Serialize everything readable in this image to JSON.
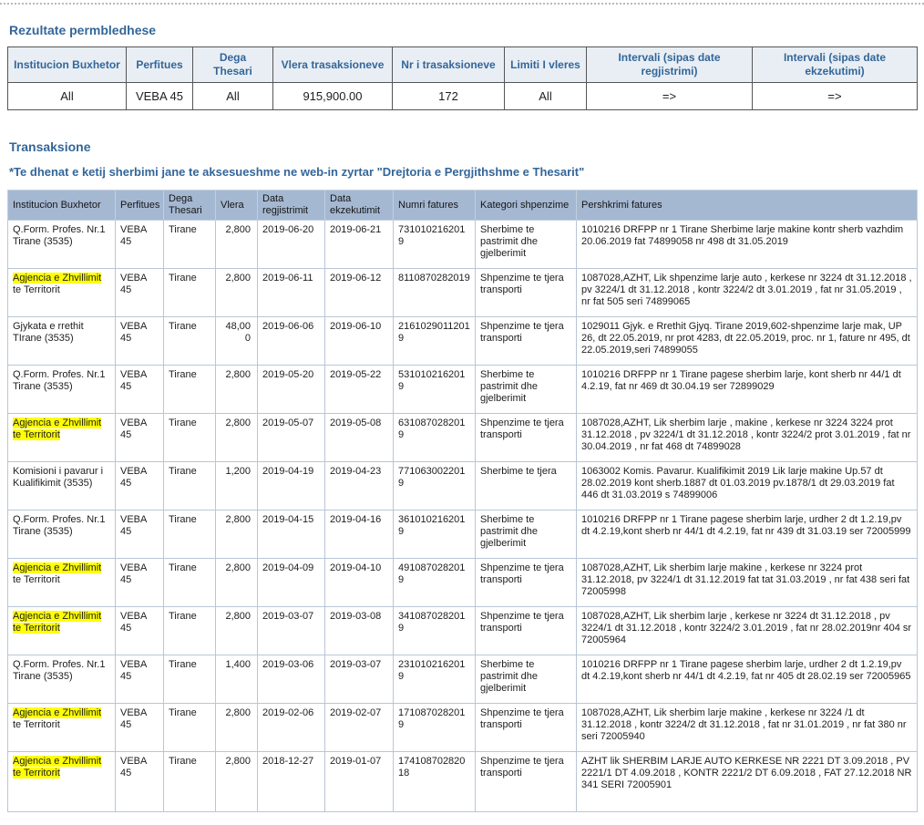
{
  "page": {
    "title_summary": "Rezultate permbledhese",
    "title_transactions": "Transaksione",
    "note": "*Te dhenat e ketij sherbimi jane te aksesueshme ne web-in zyrtar \"Drejtoria e Pergjithshme e Thesarit\""
  },
  "colors": {
    "accent": "#336699",
    "summary_header_bg": "#e8eef4",
    "transactions_header_bg": "#a5b8d2",
    "highlight": "#ffff00"
  },
  "summary": {
    "columns": [
      {
        "header": "Institucion Buxhetor",
        "value": "All"
      },
      {
        "header": "Perfitues",
        "value": "VEBA 45"
      },
      {
        "header": "Dega Thesari",
        "value": "All"
      },
      {
        "header": "Vlera trasaksioneve",
        "value": "915,900.00"
      },
      {
        "header": "Nr i trasaksioneve",
        "value": "172"
      },
      {
        "header": "Limiti I vleres",
        "value": "All"
      },
      {
        "header": "Intervali (sipas date regjistrimi)",
        "value": "=>"
      },
      {
        "header": "Intervali (sipas date ekzekutimi)",
        "value": "=>"
      }
    ]
  },
  "transactions": {
    "columns": [
      {
        "key": "institucion",
        "label": "Institucion Buxhetor"
      },
      {
        "key": "perfitues",
        "label": "Perfitues"
      },
      {
        "key": "dega",
        "label": "Dega Thesari"
      },
      {
        "key": "vlera",
        "label": "Vlera"
      },
      {
        "key": "data-regjistrimit",
        "label": "Data regjistrimit"
      },
      {
        "key": "data-ekzekutimit",
        "label": "Data ekzekutimit"
      },
      {
        "key": "numri-fatures",
        "label": "Numri fatures"
      },
      {
        "key": "kategori-shpenzime",
        "label": "Kategori shpenzime"
      },
      {
        "key": "pershkrimi-fatures",
        "label": "Pershkrimi fatures"
      }
    ],
    "rows": [
      {
        "institution_parts": [
          {
            "text": "Q.Form. Profes. Nr.1 Tirane (3535)",
            "hl": false
          }
        ],
        "perfitues": "VEBA 45",
        "dega": "Tirane",
        "vlera": "2,800",
        "data_regjistrimit": "2019-06-20",
        "data_ekzekutimit": "2019-06-21",
        "numri_fatures": "7310102162019",
        "kategori": "Sherbime te pastrimit dhe gjelberimit",
        "pershkrimi": "1010216 DRFPP nr 1 Tirane Sherbime larje makine kontr sherb vazhdim 20.06.2019 fat 74899058 nr 498 dt 31.05.2019"
      },
      {
        "institution_parts": [
          {
            "text": "Agjencia e Zhvillimit",
            "hl": true
          },
          {
            "text": " te Territorit",
            "hl": false
          }
        ],
        "perfitues": "VEBA 45",
        "dega": "Tirane",
        "vlera": "2,800",
        "data_regjistrimit": "2019-06-11",
        "data_ekzekutimit": "2019-06-12",
        "numri_fatures": "8110870282019",
        "kategori": "Shpenzime te tjera transporti",
        "pershkrimi": "1087028,AZHT, Lik shpenzime larje auto , kerkese nr 3224 dt 31.12.2018 , pv 3224/1 dt 31.12.2018 , kontr 3224/2 dt 3.01.2019 , fat nr 31.05.2019 , nr fat 505 seri 74899065"
      },
      {
        "institution_parts": [
          {
            "text": "Gjykata e rrethit TIrane (3535)",
            "hl": false
          }
        ],
        "perfitues": "VEBA 45",
        "dega": "Tirane",
        "vlera": "48,000",
        "data_regjistrimit": "2019-06-06",
        "data_ekzekutimit": "2019-06-10",
        "numri_fatures": "21610290112019",
        "kategori": "Shpenzime te tjera transporti",
        "pershkrimi": "1029011 Gjyk. e Rrethit Gjyq. Tirane 2019,602-shpenzime larje mak, UP 26, dt 22.05.2019, nr prot 4283, dt 22.05.2019, proc. nr 1, fature nr 495, dt 22.05.2019,seri 74899055"
      },
      {
        "institution_parts": [
          {
            "text": "Q.Form. Profes. Nr.1 Tirane (3535)",
            "hl": false
          }
        ],
        "perfitues": "VEBA 45",
        "dega": "Tirane",
        "vlera": "2,800",
        "data_regjistrimit": "2019-05-20",
        "data_ekzekutimit": "2019-05-22",
        "numri_fatures": "5310102162019",
        "kategori": "Sherbime te pastrimit dhe gjelberimit",
        "pershkrimi": "1010216 DRFPP nr 1 Tirane pagese sherbim larje, kont sherb nr 44/1 dt 4.2.19, fat nr 469 dt 30.04.19 ser 72899029"
      },
      {
        "institution_parts": [
          {
            "text": "Agjencia e Zhvillimit te Territorit",
            "hl": true
          }
        ],
        "perfitues": "VEBA 45",
        "dega": "Tirane",
        "vlera": "2,800",
        "data_regjistrimit": "2019-05-07",
        "data_ekzekutimit": "2019-05-08",
        "numri_fatures": "6310870282019",
        "kategori": "Shpenzime te tjera transporti",
        "pershkrimi": "1087028,AZHT, Lik sherbim larje , makine , kerkese nr 3224 3224 prot 31.12.2018 , pv 3224/1 dt 31.12.2018 , kontr 3224/2 prot 3.01.2019 , fat nr 30.04.2019 , nr fat 468 dt 74899028"
      },
      {
        "institution_parts": [
          {
            "text": "Komisioni i pavarur i Kualifikimit (3535)",
            "hl": false
          }
        ],
        "perfitues": "VEBA 45",
        "dega": "Tirane",
        "vlera": "1,200",
        "data_regjistrimit": "2019-04-19",
        "data_ekzekutimit": "2019-04-23",
        "numri_fatures": "7710630022019",
        "kategori": "Sherbime te tjera",
        "pershkrimi": "1063002 Komis. Pavarur. Kualifikimit 2019 Lik larje makine Up.57 dt 28.02.2019 kont sherb.1887 dt 01.03.2019 pv.1878/1 dt 29.03.2019 fat 446 dt 31.03.2019 s 74899006"
      },
      {
        "institution_parts": [
          {
            "text": "Q.Form. Profes. Nr.1 Tirane (3535)",
            "hl": false
          }
        ],
        "perfitues": "VEBA 45",
        "dega": "Tirane",
        "vlera": "2,800",
        "data_regjistrimit": "2019-04-15",
        "data_ekzekutimit": "2019-04-16",
        "numri_fatures": "3610102162019",
        "kategori": "Sherbime te pastrimit dhe gjelberimit",
        "pershkrimi": "1010216 DRFPP nr 1 Tirane pagese sherbim larje, urdher 2 dt 1.2.19,pv dt 4.2.19,kont sherb nr 44/1 dt 4.2.19, fat nr 439 dt 31.03.19 ser 72005999"
      },
      {
        "institution_parts": [
          {
            "text": "Agjencia e Zhvillimit",
            "hl": true
          },
          {
            "text": " te Territorit",
            "hl": false
          }
        ],
        "perfitues": "VEBA 45",
        "dega": "Tirane",
        "vlera": "2,800",
        "data_regjistrimit": "2019-04-09",
        "data_ekzekutimit": "2019-04-10",
        "numri_fatures": "4910870282019",
        "kategori": "Shpenzime te tjera transporti",
        "pershkrimi": "1087028,AZHT, Lik sherbim larje makine , kerkese nr 3224 prot 31.12.2018, pv 3224/1 dt 31.12.2019 fat tat 31.03.2019 , nr fat 438 seri fat 72005998"
      },
      {
        "institution_parts": [
          {
            "text": "Agjencia e Zhvillimit te Territorit",
            "hl": true
          }
        ],
        "perfitues": "VEBA 45",
        "dega": "Tirane",
        "vlera": "2,800",
        "data_regjistrimit": "2019-03-07",
        "data_ekzekutimit": "2019-03-08",
        "numri_fatures": "3410870282019",
        "kategori": "Shpenzime te tjera transporti",
        "pershkrimi": "1087028,AZHT, Lik sherbim larje , kerkese nr 3224 dt 31.12.2018 , pv 3224/1 dt 31.12.2018 , kontr 3224/2 3.01.2019 , fat nr 28.02.2019nr 404 sr 72005964"
      },
      {
        "institution_parts": [
          {
            "text": "Q.Form. Profes. Nr.1 Tirane (3535)",
            "hl": false
          }
        ],
        "perfitues": "VEBA 45",
        "dega": "Tirane",
        "vlera": "1,400",
        "data_regjistrimit": "2019-03-06",
        "data_ekzekutimit": "2019-03-07",
        "numri_fatures": "2310102162019",
        "kategori": "Sherbime te pastrimit dhe gjelberimit",
        "pershkrimi": "1010216 DRFPP nr 1 Tirane pagese sherbim larje, urdher 2 dt 1.2.19,pv dt 4.2.19,kont sherb nr 44/1 dt 4.2.19, fat nr 405 dt 28.02.19 ser 72005965"
      },
      {
        "institution_parts": [
          {
            "text": "Agjencia e Zhvillimit",
            "hl": true
          },
          {
            "text": " te Territorit",
            "hl": false
          }
        ],
        "perfitues": "VEBA 45",
        "dega": "Tirane",
        "vlera": "2,800",
        "data_regjistrimit": "2019-02-06",
        "data_ekzekutimit": "2019-02-07",
        "numri_fatures": "1710870282019",
        "kategori": "Shpenzime te tjera transporti",
        "pershkrimi": "1087028,AZHT, Lik sherbim larje makine , kerkese nr 3224 /1 dt 31.12.2018 , kontr 3224/2 dt 31.12.2018 , fat nr 31.01.2019 , nr fat 380 nr seri 72005940"
      },
      {
        "institution_parts": [
          {
            "text": "Agjencia e Zhvillimit te Territorit",
            "hl": true
          }
        ],
        "perfitues": "VEBA 45",
        "dega": "Tirane",
        "vlera": "2,800",
        "data_regjistrimit": "2018-12-27",
        "data_ekzekutimit": "2019-01-07",
        "numri_fatures": "17410870282018",
        "kategori": "Shpenzime te tjera transporti",
        "pershkrimi": "AZHT lik SHERBIM LARJE AUTO KERKESE NR 2221 DT 3.09.2018 , PV 2221/1 DT 4.09.2018 , KONTR 2221/2 DT 6.09.2018 , FAT 27.12.2018 NR 341 SERI 72005901"
      }
    ]
  }
}
